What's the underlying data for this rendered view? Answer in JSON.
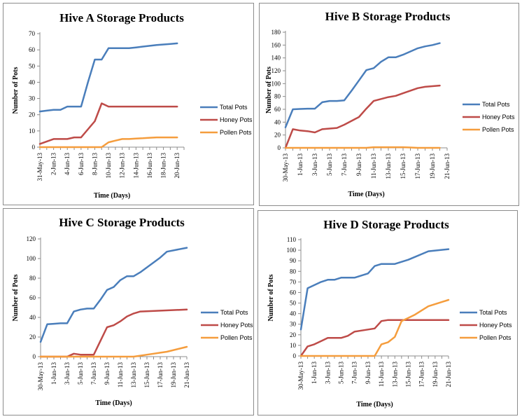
{
  "chart_data": [
    {
      "type": "line",
      "title": "Hive A Storage Products",
      "xlabel": "Time (Days)",
      "ylabel": "Number of Pots",
      "ylim": [
        0,
        70
      ],
      "ytick_step": 10,
      "legend": "right",
      "grid": false,
      "xtick_labels": [
        "31-May-13",
        "2-Jun-13",
        "4-Jun-13",
        "6-Jun-13",
        "8-Jun-13",
        "10-Jun-13",
        "12-Jun-13",
        "14-Jun-13",
        "16-Jun-13",
        "18-Jun-13",
        "20-Jun-13"
      ],
      "x": [
        "31-May-13",
        "1-Jun-13",
        "2-Jun-13",
        "3-Jun-13",
        "4-Jun-13",
        "5-Jun-13",
        "6-Jun-13",
        "7-Jun-13",
        "8-Jun-13",
        "9-Jun-13",
        "10-Jun-13",
        "11-Jun-13",
        "12-Jun-13",
        "13-Jun-13",
        "14-Jun-13",
        "15-Jun-13",
        "16-Jun-13",
        "17-Jun-13",
        "18-Jun-13",
        "19-Jun-13",
        "20-Jun-13",
        "21-Jun-13"
      ],
      "series": [
        {
          "name": "Total Pots",
          "color": "#4a7ebb",
          "values": [
            22,
            22.5,
            23,
            23,
            25,
            25,
            25,
            40,
            54,
            54,
            61,
            61,
            61,
            61,
            61.5,
            62,
            62.5,
            63,
            63.3,
            63.6,
            64,
            null
          ]
        },
        {
          "name": "Honey Pots",
          "color": "#be4b48",
          "values": [
            2,
            3.5,
            5,
            5,
            5,
            6,
            6,
            11,
            16,
            27,
            25,
            25,
            25,
            25,
            25,
            25,
            25,
            25,
            25,
            25,
            25,
            null
          ]
        },
        {
          "name": "Pollen Pots",
          "color": "#f59d3d",
          "values": [
            0,
            0,
            0,
            0,
            0,
            0,
            0,
            0,
            0,
            0,
            3,
            4,
            5,
            5,
            5.3,
            5.5,
            5.8,
            6,
            6,
            6,
            6,
            null
          ]
        }
      ]
    },
    {
      "type": "line",
      "title": "Hive B Storage Products",
      "xlabel": "Time (Days)",
      "ylabel": "Number of Pots",
      "ylim": [
        0,
        180
      ],
      "ytick_step": 20,
      "legend": "right",
      "grid": false,
      "xtick_labels": [
        "30-May-13",
        "1-Jun-13",
        "3-Jun-13",
        "5-Jun-13",
        "7-Jun-13",
        "9-Jun-13",
        "11-Jun-13",
        "13-Jun-13",
        "15-Jun-13",
        "17-Jun-13",
        "19-Jun-13",
        "21-Jun-13"
      ],
      "x": [
        "30-May-13",
        "31-May-13",
        "1-Jun-13",
        "2-Jun-13",
        "3-Jun-13",
        "4-Jun-13",
        "5-Jun-13",
        "6-Jun-13",
        "7-Jun-13",
        "8-Jun-13",
        "9-Jun-13",
        "10-Jun-13",
        "11-Jun-13",
        "12-Jun-13",
        "13-Jun-13",
        "14-Jun-13",
        "15-Jun-13",
        "16-Jun-13",
        "17-Jun-13",
        "18-Jun-13",
        "19-Jun-13",
        "20-Jun-13",
        "21-Jun-13"
      ],
      "series": [
        {
          "name": "Total Pots",
          "color": "#4a7ebb",
          "values": [
            32,
            60,
            60.5,
            61,
            61,
            71,
            73,
            73,
            74,
            89,
            105,
            121,
            124,
            134,
            141,
            141,
            145,
            150,
            155,
            158,
            160,
            163,
            null
          ]
        },
        {
          "name": "Honey Pots",
          "color": "#be4b48",
          "values": [
            0,
            29,
            27,
            26,
            24,
            29,
            30,
            31,
            36,
            42,
            48,
            61,
            73,
            76,
            79,
            81,
            85,
            89,
            93,
            95,
            96,
            97,
            null
          ]
        },
        {
          "name": "Pollen Pots",
          "color": "#f59d3d",
          "values": [
            0,
            0,
            0,
            0,
            0,
            0,
            0,
            0,
            0,
            0,
            0,
            0,
            1,
            1,
            1,
            1,
            1,
            0.5,
            0,
            0,
            0,
            0,
            null
          ]
        }
      ]
    },
    {
      "type": "line",
      "title": "Hive C Storage Products",
      "xlabel": "Time (Days)",
      "ylabel": "Number of Pots",
      "ylim": [
        0,
        120
      ],
      "ytick_step": 20,
      "legend": "right",
      "grid": false,
      "xtick_labels": [
        "30-May-13",
        "1-Jun-13",
        "3-Jun-13",
        "5-Jun-13",
        "7-Jun-13",
        "9-Jun-13",
        "11-Jun-13",
        "13-Jun-13",
        "15-Jun-13",
        "17-Jun-13",
        "19-Jun-13",
        "21-Jun-13"
      ],
      "x": [
        "30-May-13",
        "31-May-13",
        "1-Jun-13",
        "2-Jun-13",
        "3-Jun-13",
        "4-Jun-13",
        "5-Jun-13",
        "6-Jun-13",
        "7-Jun-13",
        "8-Jun-13",
        "9-Jun-13",
        "10-Jun-13",
        "11-Jun-13",
        "12-Jun-13",
        "13-Jun-13",
        "14-Jun-13",
        "15-Jun-13",
        "16-Jun-13",
        "17-Jun-13",
        "18-Jun-13",
        "19-Jun-13",
        "20-Jun-13",
        "21-Jun-13"
      ],
      "series": [
        {
          "name": "Total Pots",
          "color": "#4a7ebb",
          "values": [
            15,
            33,
            33.5,
            34,
            34,
            46,
            48,
            49,
            49,
            58,
            68,
            71,
            78,
            82,
            82,
            86,
            91,
            96,
            101,
            107,
            null,
            null,
            111
          ]
        },
        {
          "name": "Honey Pots",
          "color": "#be4b48",
          "values": [
            0,
            0,
            0,
            0,
            0,
            3,
            2,
            2,
            2,
            16,
            30,
            32,
            36,
            41,
            44,
            46,
            null,
            null,
            null,
            null,
            null,
            null,
            48
          ]
        },
        {
          "name": "Pollen Pots",
          "color": "#f59d3d",
          "values": [
            0,
            0,
            0,
            0,
            0,
            0,
            0,
            0,
            0,
            0,
            0,
            0,
            0,
            0,
            0,
            1,
            2,
            3,
            4,
            5,
            null,
            null,
            10
          ]
        }
      ]
    },
    {
      "type": "line",
      "title": "Hive D Storage Products",
      "xlabel": "Time (Days)",
      "ylabel": "Number of Pots",
      "ylim": [
        0,
        110
      ],
      "ytick_step": 10,
      "legend": "right",
      "grid": false,
      "xtick_labels": [
        "30-May-13",
        "1-Jun-13",
        "3-Jun-13",
        "5-Jun-13",
        "7-Jun-13",
        "9-Jun-13",
        "11-Jun-13",
        "13-Jun-13",
        "15-Jun-13",
        "17-Jun-13",
        "19-Jun-13",
        "21-Jun-13"
      ],
      "x": [
        "30-May-13",
        "31-May-13",
        "1-Jun-13",
        "2-Jun-13",
        "3-Jun-13",
        "4-Jun-13",
        "5-Jun-13",
        "6-Jun-13",
        "7-Jun-13",
        "8-Jun-13",
        "9-Jun-13",
        "10-Jun-13",
        "11-Jun-13",
        "12-Jun-13",
        "13-Jun-13",
        "14-Jun-13",
        "15-Jun-13",
        "16-Jun-13",
        "17-Jun-13",
        "18-Jun-13",
        "19-Jun-13",
        "20-Jun-13",
        "21-Jun-13"
      ],
      "series": [
        {
          "name": "Total Pots",
          "color": "#4a7ebb",
          "values": [
            25,
            64,
            67,
            70,
            72,
            72,
            74,
            74,
            74,
            76,
            78,
            85,
            87,
            87,
            87,
            89,
            91,
            null,
            null,
            99,
            null,
            null,
            101
          ]
        },
        {
          "name": "Honey Pots",
          "color": "#be4b48",
          "values": [
            0,
            9,
            11,
            14,
            17,
            17,
            17,
            19,
            23,
            24,
            25,
            26,
            33,
            34,
            34,
            34,
            34,
            null,
            null,
            null,
            null,
            null,
            34
          ]
        },
        {
          "name": "Pollen Pots",
          "color": "#f59d3d",
          "values": [
            0,
            0,
            0,
            0,
            0,
            0,
            0,
            0,
            0,
            0,
            0,
            0,
            11,
            13,
            18,
            33,
            36,
            39,
            43,
            47,
            null,
            null,
            53
          ]
        }
      ]
    }
  ]
}
